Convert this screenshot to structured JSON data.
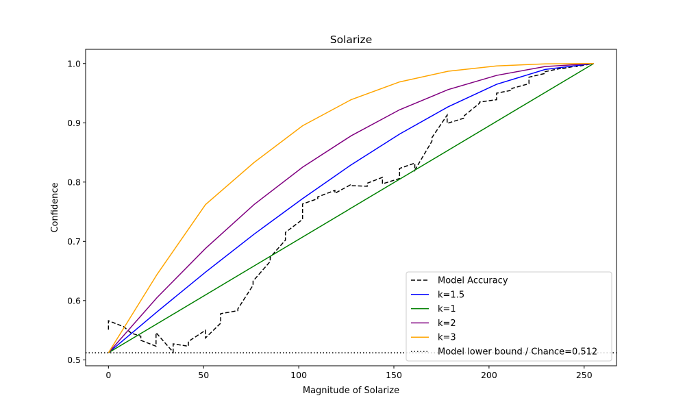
{
  "chart_data": {
    "type": "line",
    "title": "Solarize",
    "xlabel": "Magnitude of Solarize",
    "ylabel": "Confidence",
    "xlim": [
      -12,
      267
    ],
    "ylim": [
      0.49,
      1.024
    ],
    "xticks": [
      0,
      50,
      100,
      150,
      200,
      250
    ],
    "yticks": [
      0.5,
      0.6,
      0.7,
      0.8,
      0.9,
      1.0
    ],
    "ytick_labels": [
      "0.5",
      "0.6",
      "0.7",
      "0.8",
      "0.9",
      "1.0"
    ],
    "grid": false,
    "legend_position": "lower-right",
    "series": [
      {
        "name": "Model Accuracy",
        "color": "#000000",
        "style": "dashed",
        "x": [
          0,
          0,
          8,
          12,
          17,
          17,
          25,
          25,
          34,
          34,
          42,
          42,
          51,
          51,
          59,
          59,
          68,
          68,
          76,
          76,
          85,
          85,
          93,
          93,
          102,
          102,
          110,
          110,
          119,
          119,
          127,
          127,
          136,
          136,
          144,
          144,
          153,
          153,
          161,
          161,
          170,
          170,
          178,
          178,
          187,
          187,
          195,
          195,
          204,
          204,
          212,
          212,
          221,
          221,
          229,
          229,
          238,
          238,
          246,
          246,
          255
        ],
        "y": [
          0.551,
          0.566,
          0.556,
          0.545,
          0.54,
          0.533,
          0.523,
          0.546,
          0.513,
          0.527,
          0.523,
          0.531,
          0.55,
          0.537,
          0.562,
          0.578,
          0.583,
          0.586,
          0.626,
          0.633,
          0.666,
          0.673,
          0.702,
          0.715,
          0.737,
          0.763,
          0.772,
          0.775,
          0.786,
          0.781,
          0.795,
          0.794,
          0.793,
          0.798,
          0.808,
          0.797,
          0.806,
          0.823,
          0.832,
          0.82,
          0.869,
          0.875,
          0.913,
          0.899,
          0.908,
          0.912,
          0.933,
          0.935,
          0.939,
          0.95,
          0.955,
          0.958,
          0.966,
          0.977,
          0.983,
          0.986,
          0.992,
          0.991,
          0.996,
          0.995,
          1.0
        ]
      },
      {
        "name": "k=1.5",
        "color": "#0000ff",
        "style": "solid",
        "x": [
          0,
          25.5,
          51,
          76.5,
          102,
          127.5,
          153,
          178.5,
          204,
          229.5,
          255
        ],
        "y": [
          0.512,
          0.581,
          0.648,
          0.712,
          0.772,
          0.829,
          0.881,
          0.927,
          0.965,
          0.99,
          1.0
        ]
      },
      {
        "name": "k=1",
        "color": "#008000",
        "style": "solid",
        "x": [
          0,
          255
        ],
        "y": [
          0.512,
          1.0
        ]
      },
      {
        "name": "k=2",
        "color": "#800080",
        "style": "solid",
        "x": [
          0,
          25.5,
          51,
          76.5,
          102,
          127.5,
          153,
          178.5,
          204,
          229.5,
          255
        ],
        "y": [
          0.512,
          0.605,
          0.688,
          0.762,
          0.825,
          0.878,
          0.922,
          0.956,
          0.98,
          0.995,
          1.0
        ]
      },
      {
        "name": "k=3",
        "color": "#ffa500",
        "style": "solid",
        "x": [
          0,
          25.5,
          51,
          76.5,
          102,
          127.5,
          153,
          178.5,
          204,
          229.5,
          255
        ],
        "y": [
          0.512,
          0.644,
          0.762,
          0.833,
          0.895,
          0.939,
          0.969,
          0.987,
          0.996,
          0.9995,
          1.0
        ]
      },
      {
        "name": "Model lower bound / Chance=0.512",
        "color": "#000000",
        "style": "dotted",
        "hline": 0.512
      }
    ]
  }
}
